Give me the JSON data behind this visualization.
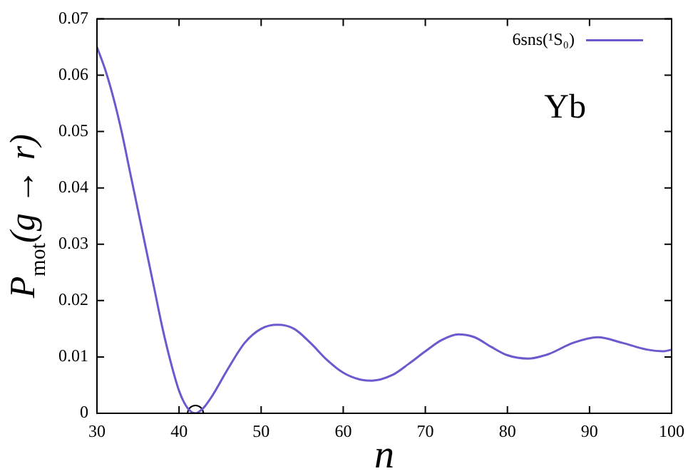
{
  "chart_data": {
    "type": "line",
    "xlabel": "n",
    "ylabel": "P$_{mot}$(g → r)",
    "annotations": [
      "Yb"
    ],
    "xlim": [
      30,
      100
    ],
    "xticks": [
      30,
      40,
      50,
      60,
      70,
      80,
      90,
      100
    ],
    "ylim": [
      0,
      0.07
    ],
    "yticks": [
      0,
      0.01,
      0.02,
      0.03,
      0.04,
      0.05,
      0.06,
      0.07
    ],
    "grid": false,
    "legend": "top right",
    "series": [
      {
        "name": "6sns(¹S₀)",
        "color": "#6a5acd",
        "type": "line",
        "marker": "none",
        "x": [
          30,
          31,
          32,
          33,
          34,
          35,
          36,
          37,
          38,
          39,
          40,
          41,
          42,
          43,
          44,
          46,
          48,
          50,
          52,
          54,
          56,
          58,
          60,
          62,
          63.5,
          66,
          68,
          70,
          72,
          74,
          76,
          78,
          80,
          82.5,
          85,
          88,
          91,
          94,
          97,
          99,
          100
        ],
        "values": [
          0.065,
          0.061,
          0.056,
          0.05,
          0.043,
          0.036,
          0.029,
          0.022,
          0.015,
          0.009,
          0.004,
          0.001,
          0,
          0.001,
          0.003,
          0.008,
          0.0125,
          0.015,
          0.0157,
          0.015,
          0.0125,
          0.0095,
          0.0072,
          0.006,
          0.0058,
          0.0068,
          0.0088,
          0.011,
          0.013,
          0.014,
          0.0135,
          0.0118,
          0.0103,
          0.0097,
          0.0105,
          0.0125,
          0.0135,
          0.0125,
          0.0113,
          0.011,
          0.0113
        ]
      },
      {
        "color": "#000000",
        "type": "scatter",
        "marker": "circle",
        "x": [
          42
        ],
        "values": [
          0
        ]
      }
    ]
  }
}
